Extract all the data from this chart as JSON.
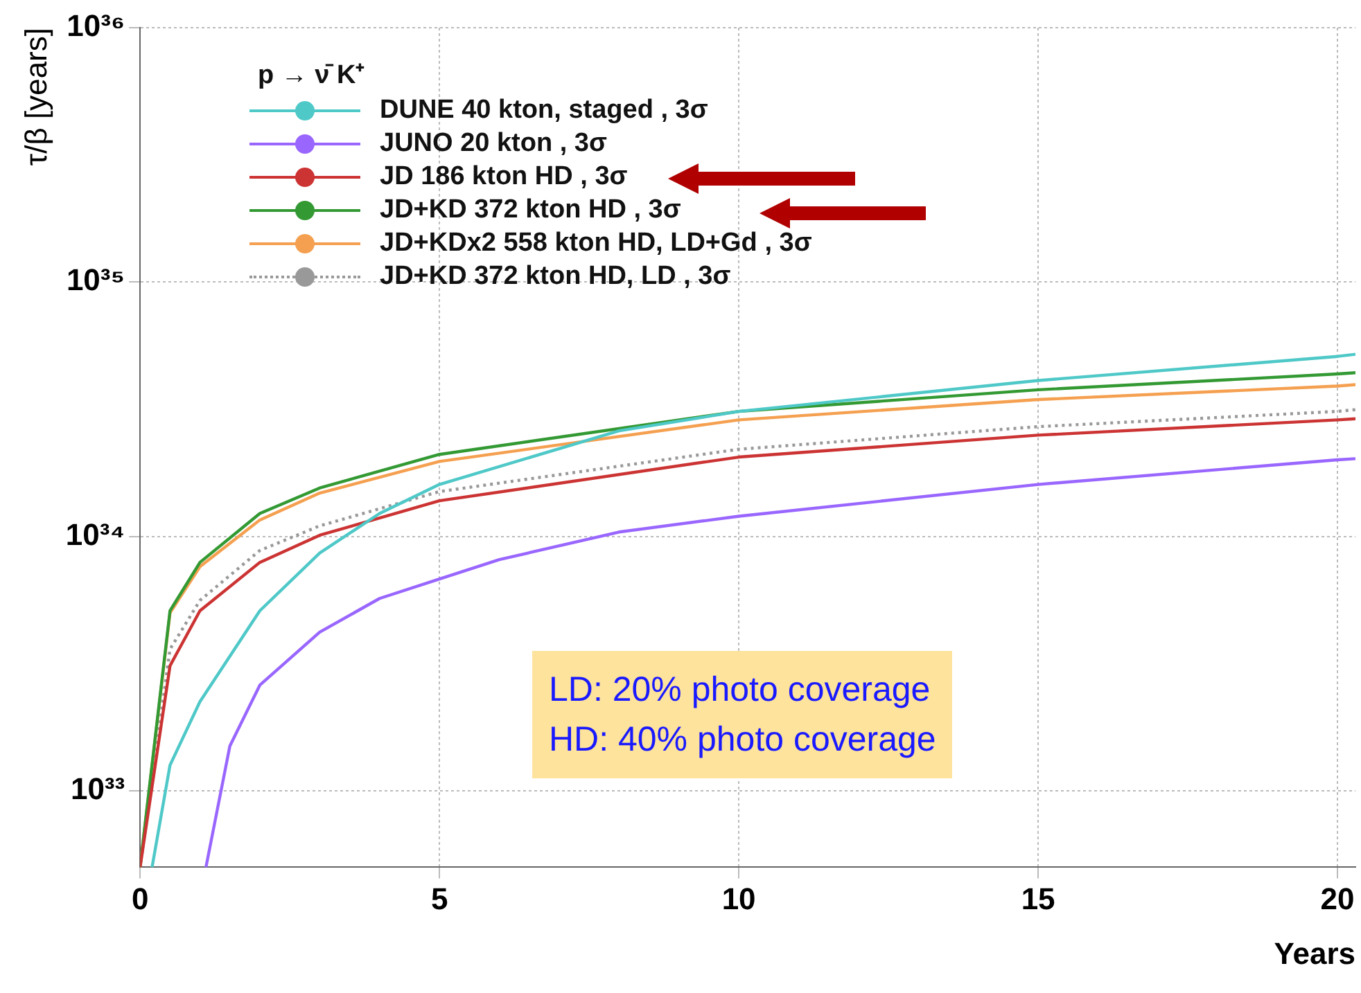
{
  "chart_data": {
    "type": "line",
    "xlabel": "Years",
    "ylabel": "τ/β [years]",
    "legend_title": "p → ν̄ K⁺",
    "log": true,
    "grid": true,
    "legend": "top left",
    "marker": "none",
    "xlim": [
      0,
      20.3
    ],
    "xticks": [
      0,
      5,
      10,
      15,
      20
    ],
    "ylim": [
      5e+32,
      1e+36
    ],
    "yticks": [
      {
        "value": 1e+33,
        "label": "10³³"
      },
      {
        "value": 1e+34,
        "label": "10³⁴"
      },
      {
        "value": 1e+35,
        "label": "10³⁵"
      },
      {
        "value": 1e+36,
        "label": "10³⁶"
      }
    ],
    "annotations": [
      "LD: 20% photo coverage",
      "HD: 40% photo coverage"
    ],
    "series": [
      {
        "name": "DUNE 40 kton, staged , 3σ",
        "color": "#4fc8c8",
        "x": [
          0.2,
          0.5,
          1,
          2,
          3,
          4,
          5,
          8,
          10,
          15,
          20,
          20.3
        ],
        "values": [
          5e+32,
          1.26e+33,
          2.24e+33,
          5.1e+33,
          8.6e+33,
          1.23e+34,
          1.6e+34,
          2.6e+34,
          3.1e+34,
          4.1e+34,
          5.1e+34,
          5.2e+34
        ]
      },
      {
        "name": "JUNO 20 kton , 3σ",
        "color": "#9966ff",
        "x": [
          1.1,
          1.5,
          2,
          3,
          4,
          5,
          6,
          8,
          10,
          15,
          20,
          20.3
        ],
        "values": [
          5e+32,
          1.5e+33,
          2.6e+33,
          4.2e+33,
          5.7e+33,
          6.8e+33,
          8.1e+33,
          1.04e+34,
          1.2e+34,
          1.6e+34,
          2e+34,
          2.02e+34
        ]
      },
      {
        "name": "JD 186 kton HD , 3σ",
        "color": "#cc3333",
        "x": [
          0,
          0.5,
          1,
          2,
          3,
          5,
          10,
          15,
          20,
          20.3
        ],
        "values": [
          5e+32,
          3.1e+33,
          5.1e+33,
          7.9e+33,
          1.01e+34,
          1.38e+34,
          2.05e+34,
          2.5e+34,
          2.87e+34,
          2.9e+34
        ]
      },
      {
        "name": "JD+KD 372 kton HD , 3σ",
        "color": "#339933",
        "x": [
          0,
          0.5,
          1,
          2,
          3,
          5,
          10,
          15,
          20,
          20.3
        ],
        "values": [
          5e+32,
          5.1e+33,
          7.9e+33,
          1.23e+34,
          1.55e+34,
          2.1e+34,
          3.1e+34,
          3.77e+34,
          4.35e+34,
          4.4e+34
        ]
      },
      {
        "name": "JD+KDx2 558 kton HD, LD+Gd , 3σ",
        "color": "#f5a050",
        "x": [
          0,
          0.5,
          1,
          2,
          3,
          5,
          10,
          15,
          20,
          20.3
        ],
        "values": [
          5e+32,
          5e+33,
          7.6e+33,
          1.16e+34,
          1.48e+34,
          1.97e+34,
          2.87e+34,
          3.45e+34,
          3.9e+34,
          3.95e+34
        ]
      },
      {
        "name": "JD+KD  372 kton HD, LD , 3σ",
        "color": "#999999",
        "line_style": "dotted",
        "x": [
          0,
          0.5,
          1,
          2,
          3,
          5,
          10,
          15,
          20,
          20.3
        ],
        "values": [
          5e+32,
          3.6e+33,
          5.6e+33,
          8.8e+33,
          1.1e+34,
          1.5e+34,
          2.2e+34,
          2.7e+34,
          3.1e+34,
          3.15e+34
        ]
      }
    ]
  }
}
